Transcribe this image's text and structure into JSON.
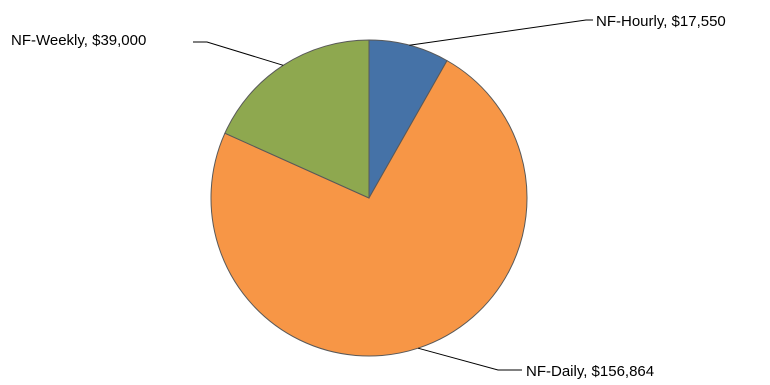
{
  "chart_data": {
    "type": "pie",
    "title": "",
    "slices": [
      {
        "label": "NF-Hourly",
        "value": 17550,
        "display": "NF-Hourly, $17,550",
        "color": "#4572a7"
      },
      {
        "label": "NF-Daily",
        "value": 156864,
        "display": "NF-Daily, $156,864",
        "color": "#f79646"
      },
      {
        "label": "NF-Weekly",
        "value": 39000,
        "display": "NF-Weekly, $39,000",
        "color": "#8ea84f"
      }
    ],
    "start_angle_deg": 0,
    "direction": "clockwise",
    "outline_color": "#595959",
    "legend": "none"
  }
}
